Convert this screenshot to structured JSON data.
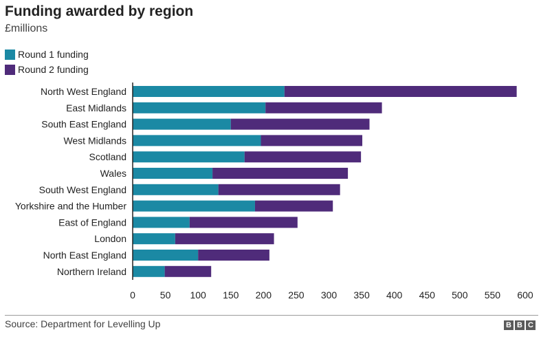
{
  "title": "Funding awarded by region",
  "subtitle": "£millions",
  "source": "Source: Department for Levelling Up",
  "logo": [
    "B",
    "B",
    "C"
  ],
  "colors": {
    "round1": "#1b89a4",
    "round2": "#4f2b7a",
    "axis": "#222222"
  },
  "chart_data": {
    "type": "bar",
    "orientation": "horizontal",
    "stacked": true,
    "categories": [
      "North West England",
      "East Midlands",
      "South East England",
      "West Midlands",
      "Scotland",
      "Wales",
      "South West England",
      "Yorkshire and the Humber",
      "East of England",
      "London",
      "North East England",
      "Northern Ireland"
    ],
    "series": [
      {
        "name": "Round 1 funding",
        "color": "#1b89a4",
        "values": [
          232,
          203,
          150,
          196,
          171,
          122,
          131,
          187,
          87,
          65,
          100,
          49
        ]
      },
      {
        "name": "Round 2 funding",
        "color": "#4f2b7a",
        "values": [
          355,
          178,
          212,
          155,
          178,
          207,
          186,
          119,
          165,
          151,
          109,
          71
        ]
      }
    ],
    "xlim": [
      0,
      600
    ],
    "xticks": [
      "0",
      "50",
      "100",
      "150",
      "200",
      "250",
      "300",
      "350",
      "400",
      "450",
      "500",
      "550",
      "600"
    ],
    "grid": false,
    "legend_position": "top-left"
  }
}
